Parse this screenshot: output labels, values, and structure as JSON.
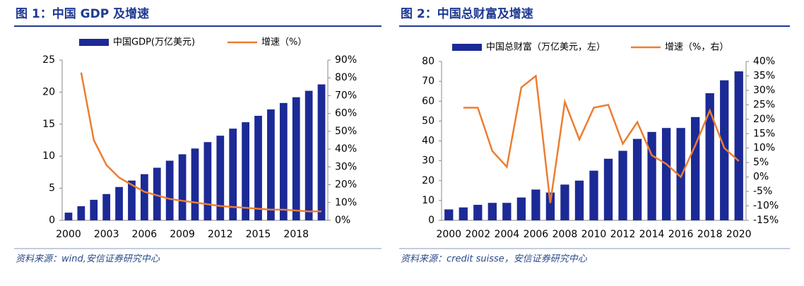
{
  "chart_data": [
    {
      "type": "bar",
      "title": "图 1：中国 GDP 及增速",
      "source": "资料来源：wind,安信证券研究中心",
      "categories": [
        "2000",
        null,
        null,
        "2003",
        null,
        null,
        "2006",
        null,
        null,
        "2009",
        null,
        null,
        "2012",
        null,
        null,
        "2015",
        null,
        null,
        "2018",
        null,
        null
      ],
      "series": [
        {
          "name": "中国GDP(万亿美元)",
          "type": "bar",
          "color": "#1c2a96",
          "values": [
            1.2,
            2.2,
            3.2,
            4.1,
            5.2,
            6.2,
            7.2,
            8.2,
            9.3,
            10.3,
            11.2,
            12.2,
            13.2,
            14.3,
            15.3,
            16.3,
            17.3,
            18.3,
            19.2,
            20.2,
            21.2
          ]
        },
        {
          "name": "增速（%）",
          "type": "line",
          "axis": "y2",
          "color": "#ed7d31",
          "values": [
            null,
            83,
            45,
            31,
            24,
            20,
            16,
            14,
            12,
            11,
            10,
            9,
            8,
            7.5,
            7,
            6.5,
            6,
            6,
            5.5,
            5,
            5
          ]
        }
      ],
      "ylim": [
        0,
        25
      ],
      "yticks": [
        0,
        5,
        10,
        15,
        20,
        25
      ],
      "y2lim": [
        0,
        90
      ],
      "y2ticks": [
        {
          "value": 0,
          "label": "0%"
        },
        {
          "value": 10,
          "label": "10%"
        },
        {
          "value": 20,
          "label": "20%"
        },
        {
          "value": 30,
          "label": "30%"
        },
        {
          "value": 40,
          "label": "40%"
        },
        {
          "value": 50,
          "label": "50%"
        },
        {
          "value": 60,
          "label": "60%"
        },
        {
          "value": 70,
          "label": "70%"
        },
        {
          "value": 80,
          "label": "80%"
        },
        {
          "value": 90,
          "label": "90%"
        }
      ]
    },
    {
      "type": "bar",
      "title": "图 2：中国总财富及增速",
      "source": "资料来源：credit suisse，安信证券研究中心",
      "categories": [
        "2000",
        null,
        "2002",
        null,
        "2004",
        null,
        "2006",
        null,
        "2008",
        null,
        "2010",
        null,
        "2012",
        null,
        "2014",
        null,
        "2016",
        null,
        "2018",
        null,
        "2020"
      ],
      "series": [
        {
          "name": "中国总财富（万亿美元，左）",
          "type": "bar",
          "color": "#1c2a96",
          "values": [
            5.5,
            6.5,
            7.8,
            8.8,
            8.8,
            11.5,
            15.5,
            14,
            18,
            20,
            25,
            31,
            35,
            41,
            44.5,
            46.5,
            46.5,
            52,
            64,
            70.5,
            75
          ]
        },
        {
          "name": "增速（%，右）",
          "type": "line",
          "axis": "y2",
          "color": "#ed7d31",
          "values": [
            null,
            24,
            24,
            9,
            3.5,
            31,
            35,
            -9,
            26,
            13,
            24,
            25,
            11.5,
            19,
            7.5,
            4.5,
            0,
            11,
            23,
            10,
            5.5
          ]
        }
      ],
      "ylim": [
        0,
        80
      ],
      "yticks": [
        0,
        10,
        20,
        30,
        40,
        50,
        60,
        70,
        80
      ],
      "y2lim": [
        -15,
        40
      ],
      "y2ticks": [
        {
          "value": -15,
          "label": "-15%"
        },
        {
          "value": -10,
          "label": "-10%"
        },
        {
          "value": -5,
          "label": "-5%"
        },
        {
          "value": 0,
          "label": "0%"
        },
        {
          "value": 5,
          "label": "5%"
        },
        {
          "value": 10,
          "label": "10%"
        },
        {
          "value": 15,
          "label": "15%"
        },
        {
          "value": 20,
          "label": "20%"
        },
        {
          "value": 25,
          "label": "25%"
        },
        {
          "value": 30,
          "label": "30%"
        },
        {
          "value": 35,
          "label": "35%"
        },
        {
          "value": 40,
          "label": "40%"
        }
      ]
    }
  ]
}
